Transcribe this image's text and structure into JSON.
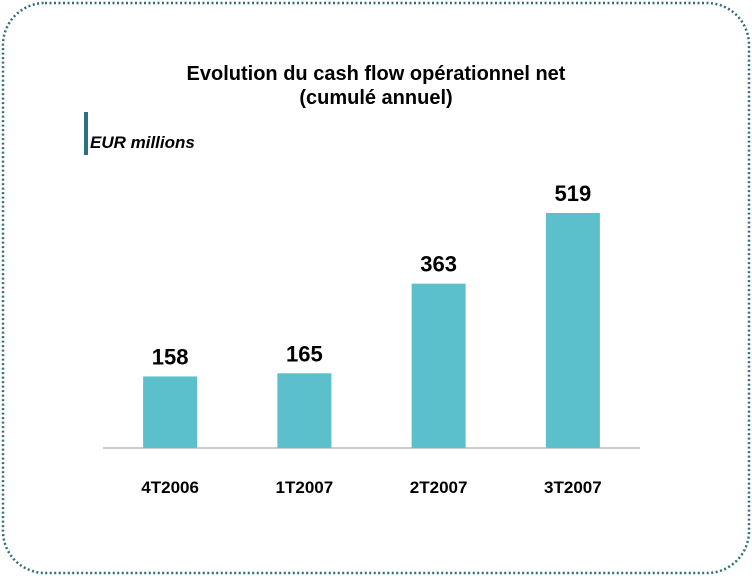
{
  "chart_data": {
    "type": "bar",
    "title": [
      "Evolution du cash flow opérationnel net",
      "(cumulé annuel)"
    ],
    "y_label": "EUR millions",
    "categories": [
      "4T2006",
      "1T2007",
      "2T2007",
      "3T2007"
    ],
    "values": [
      158,
      165,
      363,
      519
    ],
    "color": "#5bbfcc"
  }
}
